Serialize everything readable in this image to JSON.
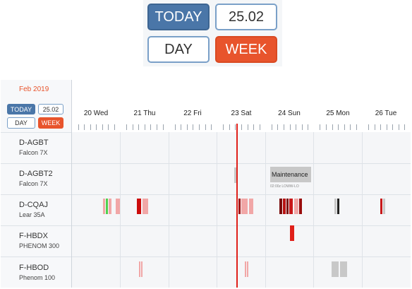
{
  "zoom": {
    "today": "TODAY",
    "date": "25.02",
    "day": "DAY",
    "week": "WEEK"
  },
  "month": "Feb 2019",
  "small": {
    "today": "TODAY",
    "date": "25.02",
    "day": "DAY",
    "week": "WEEK"
  },
  "days": [
    "20 Wed",
    "21 Thu",
    "22 Fri",
    "23 Sat",
    "24 Sun",
    "25 Mon",
    "26 Tue"
  ],
  "aircraft": [
    {
      "code": "D-AGBT",
      "type": "Falcon 7X"
    },
    {
      "code": "D-AGBT2",
      "type": "Falcon 7X"
    },
    {
      "code": "D-CQAJ",
      "type": "Lear 35A"
    },
    {
      "code": "F-HBDX",
      "type": "PHENOM 300"
    },
    {
      "code": "F-HBOD",
      "type": "Phenom 100"
    }
  ],
  "maintenance": {
    "label": "Maintenance",
    "sub": "02:00z LOWW-LO"
  },
  "colors": {
    "accent": "#4a76a8",
    "week": "#e8542c",
    "now": "#e0201a"
  }
}
